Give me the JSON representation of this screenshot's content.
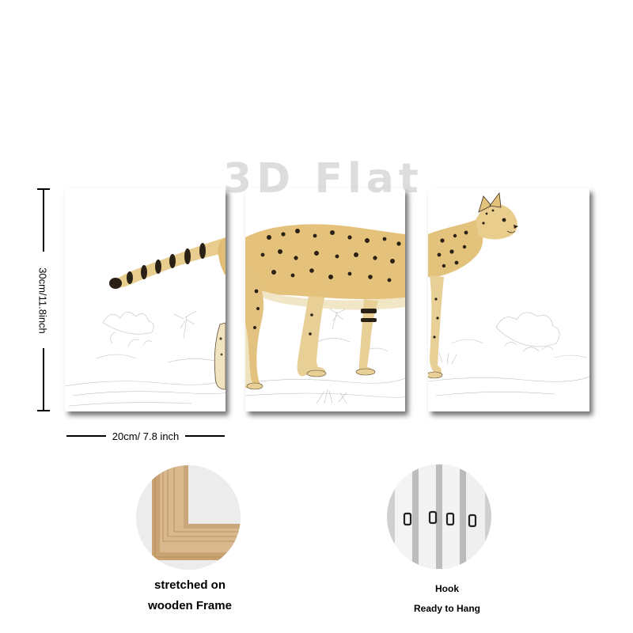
{
  "watermark": "3D Flat",
  "dimensions": {
    "height_label": "30cm/11.8inch",
    "width_label": "20cm/ 7.8 inch"
  },
  "panels": [
    "left-panel",
    "center-panel",
    "right-panel"
  ],
  "artwork_subject": "serval-cat-engraving",
  "features": [
    {
      "icon": "wooden-frame-photo",
      "line1": "stretched on",
      "line2": "wooden Frame"
    },
    {
      "icon": "hook-photo",
      "line1": "Hook",
      "line2": "Ready to Hang"
    }
  ],
  "colors": {
    "fur": "#e3c27c",
    "spots": "#2a2116",
    "wood": "#d8b88c",
    "shadow": "#3a3a3a"
  }
}
